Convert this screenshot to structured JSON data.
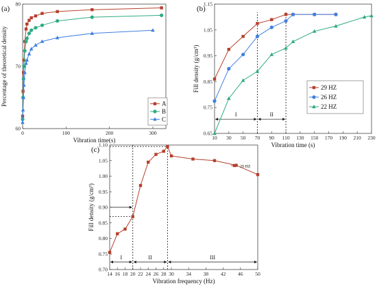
{
  "chart_data": [
    {
      "panel": "(a)",
      "type": "line",
      "xlabel": "Vibration time(s)",
      "ylabel": "Percentage of theoretical density",
      "xlim": [
        0,
        330
      ],
      "ylim": [
        60,
        80
      ],
      "xticks": [
        0,
        100,
        200,
        300
      ],
      "yticks": [
        60,
        70,
        80
      ],
      "legend_position": "bottom-right",
      "series": [
        {
          "name": "A",
          "color": "#b5402c",
          "marker": "square",
          "x": [
            0,
            1,
            2,
            3,
            5,
            8,
            10,
            15,
            20,
            30,
            45,
            80,
            160,
            320
          ],
          "y": [
            62,
            66,
            69,
            71,
            74,
            76,
            76.8,
            77.4,
            77.8,
            78.1,
            78.5,
            78.8,
            79.1,
            79.4
          ]
        },
        {
          "name": "B",
          "color": "#2eaa82",
          "marker": "circle",
          "x": [
            0,
            1,
            2,
            3,
            5,
            8,
            10,
            15,
            20,
            30,
            45,
            80,
            160,
            320
          ],
          "y": [
            61.5,
            65,
            68,
            70,
            72.5,
            74,
            74.5,
            75.3,
            75.8,
            76.2,
            76.6,
            77.3,
            77.9,
            78.2
          ]
        },
        {
          "name": "C",
          "color": "#3f7fe0",
          "marker": "triangle",
          "x": [
            0,
            1,
            2,
            3,
            5,
            8,
            10,
            15,
            20,
            30,
            45,
            80,
            160,
            300
          ],
          "y": [
            61,
            63,
            65,
            67,
            69,
            70.5,
            71,
            72,
            72.8,
            73.4,
            74,
            74.6,
            75.3,
            75.8
          ]
        }
      ]
    },
    {
      "panel": "(b)",
      "type": "line",
      "xlabel": "Vibration time (s)",
      "ylabel": "Fill density (g/cm³)",
      "xlim": [
        10,
        230
      ],
      "ylim": [
        0.65,
        1.15
      ],
      "xticks": [
        10,
        30,
        50,
        70,
        90,
        110,
        130,
        150,
        170,
        190,
        210,
        230
      ],
      "yticks": [
        0.65,
        0.75,
        0.85,
        0.95,
        1.05,
        1.15
      ],
      "legend_position": "right",
      "phase_lines_x": [
        70,
        110
      ],
      "phases": [
        "I",
        "II"
      ],
      "series": [
        {
          "name": "29 HZ",
          "color": "#b5402c",
          "marker": "square",
          "x": [
            10,
            30,
            50,
            70,
            90,
            110,
            120,
            150,
            180
          ],
          "y": [
            0.86,
            0.975,
            1.025,
            1.075,
            1.09,
            1.11,
            1.11,
            1.11,
            1.11
          ]
        },
        {
          "name": "26 HZ",
          "color": "#3f7fe0",
          "marker": "circle",
          "x": [
            10,
            30,
            50,
            70,
            90,
            110,
            120,
            150,
            180
          ],
          "y": [
            0.775,
            0.9,
            0.955,
            1.025,
            1.06,
            1.085,
            1.11,
            1.11,
            1.11
          ]
        },
        {
          "name": "22 HZ",
          "color": "#2eaa82",
          "marker": "triangle",
          "x": [
            10,
            30,
            50,
            70,
            90,
            110,
            120,
            150,
            180,
            220,
            230
          ],
          "y": [
            0.65,
            0.785,
            0.855,
            0.89,
            0.955,
            0.98,
            1.005,
            1.045,
            1.065,
            1.1,
            1.105
          ]
        }
      ]
    },
    {
      "panel": "(c)",
      "type": "line",
      "xlabel": "Vibration frequency (Hz)",
      "ylabel": "Fill density (g/cm³)",
      "xlim": [
        14,
        50
      ],
      "ylim": [
        0.7,
        1.1
      ],
      "xticks": [
        14,
        16,
        18,
        20,
        22,
        24,
        26,
        28,
        30,
        34,
        38,
        42,
        46,
        50
      ],
      "yticks": [
        0.7,
        0.75,
        0.8,
        0.85,
        0.9,
        0.95,
        1.0,
        1.05,
        1.1
      ],
      "legend_position": "top-right",
      "phase_lines_x": [
        20,
        29
      ],
      "phases": [
        "I",
        "II",
        "III"
      ],
      "series": [
        {
          "name": "29 HZ",
          "color": "#b5402c",
          "marker": "square",
          "x": [
            14,
            16,
            18,
            20,
            22,
            24,
            26,
            28,
            29,
            30,
            35,
            40,
            45,
            50
          ],
          "y": [
            0.755,
            0.815,
            0.83,
            0.87,
            0.97,
            1.045,
            1.07,
            1.08,
            1.095,
            1.065,
            1.055,
            1.05,
            1.035,
            1.005
          ]
        }
      ]
    }
  ]
}
